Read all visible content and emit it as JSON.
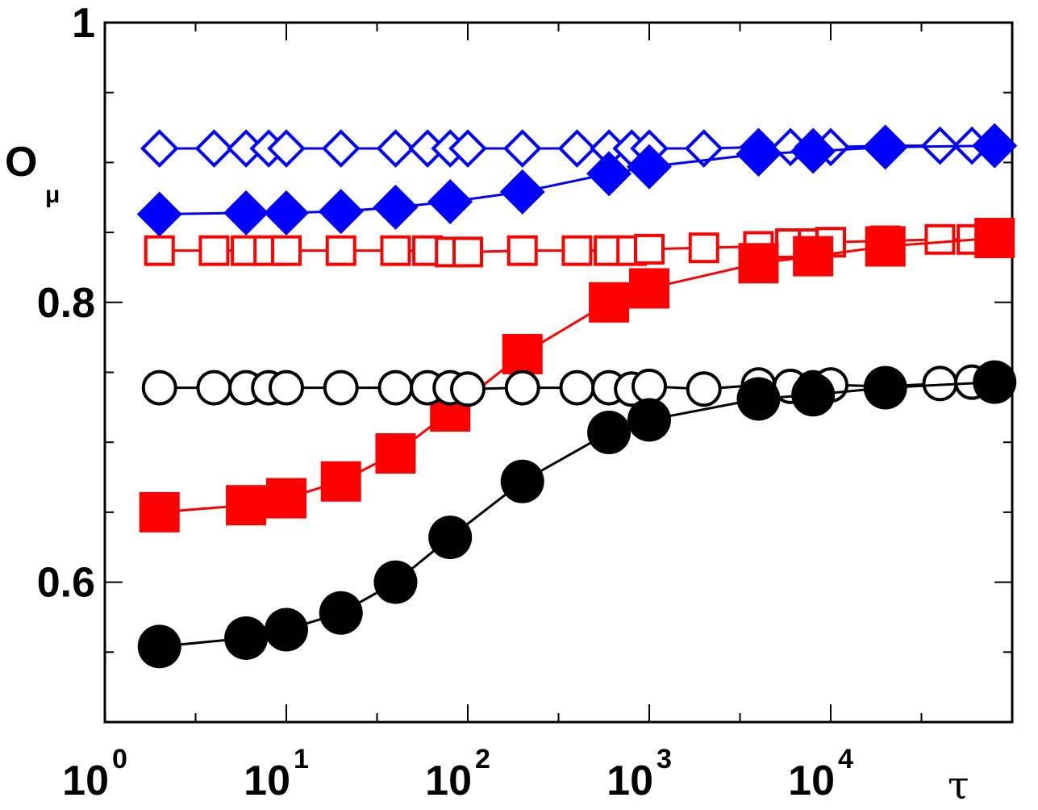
{
  "chart_data": {
    "type": "line",
    "xscale": "log",
    "xlim": [
      1,
      90000
    ],
    "ylim": [
      0.5,
      1.0
    ],
    "xlabel": "τ",
    "ylabel": "O",
    "ylabel_sub": "μ",
    "grid": false,
    "legend": "none",
    "y_ticks_major": [
      0.6,
      0.8,
      1.0
    ],
    "y_tick_labels": [
      "0.6",
      "0.8",
      "1"
    ],
    "x_ticks_major": [
      1,
      10,
      100,
      1000,
      10000
    ],
    "x_tick_labels": [
      {
        "base": "10",
        "exp": "0"
      },
      {
        "base": "10",
        "exp": "1"
      },
      {
        "base": "10",
        "exp": "2"
      },
      {
        "base": "10",
        "exp": "3"
      },
      {
        "base": "10",
        "exp": "4"
      }
    ],
    "series": [
      {
        "marker": "diamond-open",
        "color": "#0000ff",
        "line": true,
        "x": [
          2,
          4,
          6,
          8,
          10,
          20,
          40,
          60,
          80,
          100,
          200,
          400,
          600,
          800,
          1000,
          2000,
          4000,
          6000,
          8000,
          10000,
          20000,
          40000,
          60000,
          80000
        ],
        "y": [
          0.91,
          0.91,
          0.91,
          0.91,
          0.91,
          0.91,
          0.91,
          0.91,
          0.91,
          0.91,
          0.91,
          0.91,
          0.91,
          0.91,
          0.91,
          0.91,
          0.911,
          0.911,
          0.911,
          0.911,
          0.912,
          0.912,
          0.912,
          0.912
        ]
      },
      {
        "marker": "diamond-filled",
        "color": "#0000ff",
        "line": true,
        "x": [
          2,
          6,
          10,
          20,
          40,
          80,
          200,
          600,
          1000,
          4000,
          8000,
          20000,
          80000
        ],
        "y": [
          0.863,
          0.864,
          0.864,
          0.865,
          0.868,
          0.872,
          0.879,
          0.892,
          0.897,
          0.906,
          0.908,
          0.911,
          0.912
        ]
      },
      {
        "marker": "square-open",
        "color": "#ff0000",
        "line": true,
        "x": [
          2,
          4,
          6,
          8,
          10,
          20,
          40,
          60,
          80,
          100,
          200,
          400,
          600,
          800,
          1000,
          2000,
          4000,
          6000,
          8000,
          10000,
          20000,
          40000,
          60000,
          80000
        ],
        "y": [
          0.837,
          0.837,
          0.837,
          0.837,
          0.837,
          0.837,
          0.837,
          0.837,
          0.836,
          0.836,
          0.837,
          0.837,
          0.837,
          0.837,
          0.838,
          0.839,
          0.84,
          0.842,
          0.842,
          0.843,
          0.844,
          0.845,
          0.845,
          0.846
        ]
      },
      {
        "marker": "square-filled",
        "color": "#ff0000",
        "line": true,
        "x": [
          2,
          6,
          10,
          20,
          40,
          80,
          200,
          600,
          1000,
          4000,
          8000,
          20000,
          80000
        ],
        "y": [
          0.65,
          0.655,
          0.66,
          0.672,
          0.692,
          0.722,
          0.763,
          0.8,
          0.81,
          0.828,
          0.833,
          0.84,
          0.846
        ]
      },
      {
        "marker": "circle-open",
        "color": "#000000",
        "line": true,
        "x": [
          2,
          4,
          6,
          8,
          10,
          20,
          40,
          60,
          80,
          100,
          200,
          400,
          600,
          800,
          1000,
          2000,
          4000,
          6000,
          8000,
          10000,
          20000,
          40000,
          60000,
          80000
        ],
        "y": [
          0.739,
          0.739,
          0.739,
          0.739,
          0.739,
          0.739,
          0.739,
          0.739,
          0.739,
          0.738,
          0.739,
          0.739,
          0.739,
          0.738,
          0.74,
          0.738,
          0.741,
          0.74,
          0.739,
          0.741,
          0.74,
          0.742,
          0.743,
          0.743
        ]
      },
      {
        "marker": "circle-filled",
        "color": "#000000",
        "line": true,
        "x": [
          2,
          6,
          10,
          20,
          40,
          80,
          200,
          600,
          1000,
          4000,
          8000,
          20000,
          80000
        ],
        "y": [
          0.554,
          0.56,
          0.566,
          0.578,
          0.6,
          0.632,
          0.672,
          0.707,
          0.716,
          0.731,
          0.734,
          0.739,
          0.743
        ]
      }
    ]
  }
}
